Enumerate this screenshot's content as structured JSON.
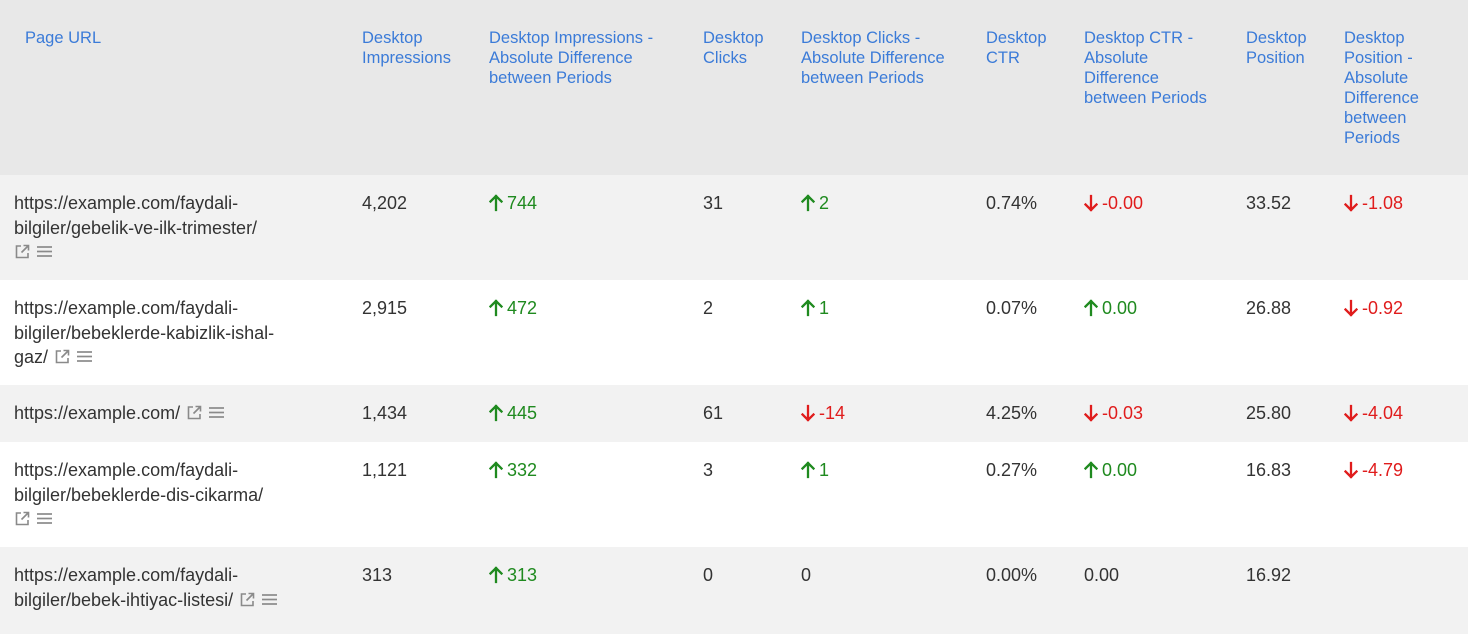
{
  "columns": [
    {
      "key": "url",
      "label": "Page URL"
    },
    {
      "key": "impressions",
      "label": "Desktop Impressions"
    },
    {
      "key": "impressions_diff",
      "label": "Desktop Impressions - Absolute Difference between Periods"
    },
    {
      "key": "clicks",
      "label": "Desktop Clicks"
    },
    {
      "key": "clicks_diff",
      "label": "Desktop Clicks - Absolute Difference between Periods"
    },
    {
      "key": "ctr",
      "label": "Desktop CTR"
    },
    {
      "key": "ctr_diff",
      "label": "Desktop CTR - Absolute Difference between Periods"
    },
    {
      "key": "position",
      "label": "Desktop Position"
    },
    {
      "key": "position_diff",
      "label": "Desktop Position - Absolute Difference between Periods"
    }
  ],
  "rows": [
    {
      "url_lines": [
        "https://example.com/faydali-",
        "bilgiler/gebelik-ve-ilk-trimester/"
      ],
      "icons_on_new_line": true,
      "impressions": "4,202",
      "impressions_diff": {
        "value": "744",
        "dir": "up"
      },
      "clicks": "31",
      "clicks_diff": {
        "value": "2",
        "dir": "up"
      },
      "ctr": "0.74%",
      "ctr_diff": {
        "value": "-0.00",
        "dir": "down"
      },
      "position": "33.52",
      "position_diff": {
        "value": "-1.08",
        "dir": "down"
      }
    },
    {
      "url_lines": [
        "https://example.com/faydali-",
        "bilgiler/bebeklerde-kabizlik-ishal-",
        "gaz/"
      ],
      "icons_on_new_line": false,
      "impressions": "2,915",
      "impressions_diff": {
        "value": "472",
        "dir": "up"
      },
      "clicks": "2",
      "clicks_diff": {
        "value": "1",
        "dir": "up"
      },
      "ctr": "0.07%",
      "ctr_diff": {
        "value": "0.00",
        "dir": "up"
      },
      "position": "26.88",
      "position_diff": {
        "value": "-0.92",
        "dir": "down"
      }
    },
    {
      "url_lines": [
        "https://example.com/"
      ],
      "icons_on_new_line": false,
      "impressions": "1,434",
      "impressions_diff": {
        "value": "445",
        "dir": "up"
      },
      "clicks": "61",
      "clicks_diff": {
        "value": "-14",
        "dir": "down"
      },
      "ctr": "4.25%",
      "ctr_diff": {
        "value": "-0.03",
        "dir": "down"
      },
      "position": "25.80",
      "position_diff": {
        "value": "-4.04",
        "dir": "down"
      }
    },
    {
      "url_lines": [
        "https://example.com/faydali-",
        "bilgiler/bebeklerde-dis-cikarma/"
      ],
      "icons_on_new_line": true,
      "impressions": "1,121",
      "impressions_diff": {
        "value": "332",
        "dir": "up"
      },
      "clicks": "3",
      "clicks_diff": {
        "value": "1",
        "dir": "up"
      },
      "ctr": "0.27%",
      "ctr_diff": {
        "value": "0.00",
        "dir": "up"
      },
      "position": "16.83",
      "position_diff": {
        "value": "-4.79",
        "dir": "down"
      }
    },
    {
      "url_lines": [
        "https://example.com/faydali-",
        "bilgiler/bebek-ihtiyac-listesi/"
      ],
      "icons_on_new_line": false,
      "impressions": "313",
      "impressions_diff": {
        "value": "313",
        "dir": "up"
      },
      "clicks": "0",
      "clicks_diff": {
        "value": "0",
        "dir": "flat"
      },
      "ctr": "0.00%",
      "ctr_diff": {
        "value": "0.00",
        "dir": "flat"
      },
      "position": "16.92",
      "position_diff": {
        "value": "",
        "dir": "none"
      }
    }
  ],
  "icons": {
    "external": "external-link-icon",
    "menu": "menu-lines-icon"
  },
  "colors": {
    "header_bg": "#e8e8e8",
    "header_text": "#3b7bd8",
    "row_alt_bg": "#f2f2f2",
    "text": "#333333",
    "positive": "#1f8a1f",
    "negative": "#e01c1c"
  }
}
